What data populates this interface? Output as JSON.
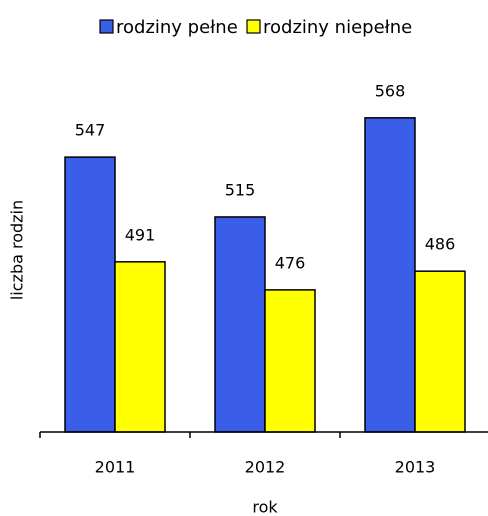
{
  "chart_data": {
    "type": "bar",
    "categories": [
      "2011",
      "2012",
      "2013"
    ],
    "series": [
      {
        "name": "rodziny pełne",
        "color": "#3b5ee8",
        "values": [
          547,
          515,
          568
        ]
      },
      {
        "name": "rodziny niepełne",
        "color": "#ffff00",
        "values": [
          491,
          476,
          486
        ]
      }
    ],
    "xlabel": "rok",
    "ylabel": "liczba rodzin",
    "ylim": [
      400,
      600
    ]
  }
}
